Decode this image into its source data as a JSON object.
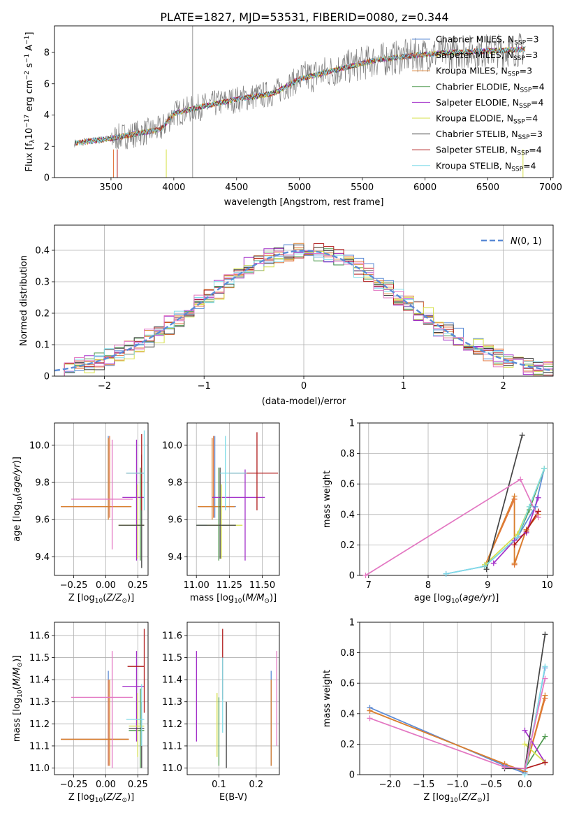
{
  "figure_title": "PLATE=1827, MJD=53531, FIBERID=0080, z=0.344",
  "models": [
    {
      "name": "Chabrier MILES",
      "nssp": "3",
      "color": "#5b8bd6"
    },
    {
      "name": "Salpeter MILES",
      "nssp": "3",
      "color": "#e3743c"
    },
    {
      "name": "Kroupa MILES",
      "nssp": "3",
      "color": "#d97f2e"
    },
    {
      "name": "Chabrier ELODIE",
      "nssp": "4",
      "color": "#4f9a4f"
    },
    {
      "name": "Salpeter ELODIE",
      "nssp": "4",
      "color": "#a330c9"
    },
    {
      "name": "Kroupa ELODIE",
      "nssp": "4",
      "color": "#d6e04a"
    },
    {
      "name": "Chabrier STELIB",
      "nssp": "3",
      "color": "#444444"
    },
    {
      "name": "Salpeter STELIB",
      "nssp": "4",
      "color": "#b01c1c"
    },
    {
      "name": "Kroupa STELIB",
      "nssp": "4",
      "color": "#80dce8"
    }
  ],
  "chart_data": [
    {
      "id": "spectrum",
      "type": "line",
      "xlabel": "wavelength [Angstrom, rest frame]",
      "ylabel": "Flux [f_λ10^-17 erg cm^-2 s^-1 A^-1]",
      "xlim": [
        3050,
        7020
      ],
      "ylim": [
        0,
        9.7
      ],
      "xticks": [
        3500,
        4000,
        4500,
        5000,
        5500,
        6000,
        6500,
        7000
      ],
      "yticks": [
        0,
        2,
        4,
        6,
        8
      ],
      "data_color": "#808080",
      "continuum": {
        "x": [
          3210,
          3500,
          3700,
          3900,
          4000,
          4200,
          4500,
          4800,
          5000,
          5300,
          5600,
          5900,
          6200,
          6500,
          6800
        ],
        "y": [
          2.2,
          2.5,
          2.8,
          3.1,
          4.1,
          4.5,
          5.0,
          5.4,
          6.3,
          6.9,
          7.5,
          7.8,
          8.0,
          8.1,
          8.2
        ]
      },
      "grid": false,
      "legend": "upper right"
    },
    {
      "id": "residuals",
      "type": "histogram",
      "xlabel": "(data-model)/error",
      "ylabel": "Normed distribution",
      "xlim": [
        -2.5,
        2.5
      ],
      "ylim": [
        0,
        0.48
      ],
      "xticks": [
        -2,
        -1,
        0,
        1,
        2
      ],
      "yticks": [
        0.0,
        0.1,
        0.2,
        0.3,
        0.4
      ],
      "bin_width": 0.1,
      "reference": {
        "label": "N(0,1)",
        "color": "#5b8bd6",
        "style": "dashed"
      },
      "grid": true,
      "legend": "upper right"
    },
    {
      "id": "age_vs_Z",
      "type": "errorbar",
      "xlabel": "Z [log10(Z/Z☉)]",
      "ylabel": "age  [log10(age/yr)]",
      "xlim": [
        -0.4,
        0.33
      ],
      "ylim": [
        9.3,
        10.12
      ],
      "xticks": [
        -0.25,
        0.0,
        0.25
      ],
      "xticklabels": [
        "−0.25",
        "0.00",
        "0.25"
      ],
      "yticks": [
        9.4,
        9.6,
        9.8,
        10.0
      ],
      "yticklabels": [
        "9.4",
        "9.6",
        "9.8",
        "10.0"
      ],
      "points": [
        {
          "m": 0,
          "x": 0.02,
          "y": 9.67,
          "x0": -0.35,
          "x1": 0.2,
          "y0": 9.61,
          "y1": 10.05
        },
        {
          "m": 1,
          "x": 0.03,
          "y": 9.67,
          "x0": -0.35,
          "x1": 0.2,
          "y0": 9.61,
          "y1": 10.05
        },
        {
          "m": 2,
          "x": 0.02,
          "y": 9.67,
          "x0": -0.35,
          "x1": 0.2,
          "y0": 9.6,
          "y1": 10.04
        },
        {
          "m": 3,
          "x": 0.27,
          "y": 9.57,
          "x0": 0.1,
          "x1": 0.3,
          "y0": 9.38,
          "y1": 9.88
        },
        {
          "m": 4,
          "x": 0.24,
          "y": 9.72,
          "x0": 0.13,
          "x1": 0.3,
          "y0": 9.38,
          "y1": 10.03
        },
        {
          "m": 5,
          "x": 0.25,
          "y": 9.57,
          "x0": 0.1,
          "x1": 0.3,
          "y0": 9.39,
          "y1": 9.79
        },
        {
          "m": 6,
          "x": 0.28,
          "y": 9.57,
          "x0": 0.1,
          "x1": 0.3,
          "y0": 9.34,
          "y1": 9.95
        },
        {
          "m": 7,
          "x": 0.28,
          "y": 9.85,
          "x0": 0.16,
          "x1": 0.3,
          "y0": 9.65,
          "y1": 10.06
        },
        {
          "m": 8,
          "x": 0.3,
          "y": 9.85,
          "x0": 0.16,
          "x1": 0.3,
          "y0": 9.65,
          "y1": 10.08
        }
      ],
      "pink": {
        "x": 0.05,
        "y": 9.71,
        "x0": -0.27,
        "x1": 0.21,
        "y0": 9.44,
        "y1": 10.03,
        "color": "#e377c2"
      },
      "grid": true
    },
    {
      "id": "age_vs_mass",
      "type": "errorbar",
      "xlabel": "mass [log10(M/M☉)]",
      "ylabel": "",
      "xlim": [
        10.93,
        11.63
      ],
      "ylim": [
        9.3,
        10.12
      ],
      "xticks": [
        11.0,
        11.25,
        11.5
      ],
      "xticklabels": [
        "11.00",
        "11.25",
        "11.50"
      ],
      "yticks": [
        9.4,
        9.6,
        9.8,
        10.0
      ],
      "yticklabels": [
        "9.4",
        "9.6",
        "9.8",
        "10.0"
      ],
      "points": [
        {
          "m": 0,
          "x": 11.14,
          "y": 9.67,
          "x0": 11.02,
          "x1": 11.3,
          "y0": 9.61,
          "y1": 10.05
        },
        {
          "m": 1,
          "x": 11.13,
          "y": 9.67,
          "x0": 11.01,
          "x1": 11.29,
          "y0": 9.61,
          "y1": 10.05
        },
        {
          "m": 2,
          "x": 11.12,
          "y": 9.67,
          "x0": 11.01,
          "x1": 11.29,
          "y0": 9.6,
          "y1": 10.04
        },
        {
          "m": 3,
          "x": 11.17,
          "y": 9.57,
          "x0": 11.0,
          "x1": 11.3,
          "y0": 9.38,
          "y1": 9.88
        },
        {
          "m": 4,
          "x": 11.37,
          "y": 9.72,
          "x0": 11.12,
          "x1": 11.52,
          "y0": 9.38,
          "y1": 9.87
        },
        {
          "m": 5,
          "x": 11.19,
          "y": 9.57,
          "x0": 11.08,
          "x1": 11.35,
          "y0": 9.39,
          "y1": 9.79
        },
        {
          "m": 6,
          "x": 11.18,
          "y": 9.57,
          "x0": 11.0,
          "x1": 11.3,
          "y0": 9.39,
          "y1": 9.88
        },
        {
          "m": 7,
          "x": 11.46,
          "y": 9.85,
          "x0": 11.25,
          "x1": 11.62,
          "y0": 9.65,
          "y1": 10.07
        },
        {
          "m": 8,
          "x": 11.22,
          "y": 9.85,
          "x0": 11.18,
          "x1": 11.38,
          "y0": 9.65,
          "y1": 10.05
        }
      ],
      "grid": true
    },
    {
      "id": "weight_vs_age",
      "type": "line",
      "xlabel": "age  [log10(age/yr)]",
      "ylabel": "mass weight",
      "xlim": [
        6.85,
        10.1
      ],
      "ylim": [
        0,
        1.0
      ],
      "xticks": [
        7,
        8,
        9,
        10
      ],
      "yticks": [
        0.0,
        0.2,
        0.4,
        0.6,
        0.8,
        1.0
      ],
      "series": [
        {
          "m": 0,
          "x": [
            8.3,
            8.95,
            9.5,
            9.8,
            9.95
          ],
          "y": [
            0.01,
            0.06,
            0.25,
            0.45,
            0.7
          ]
        },
        {
          "m": 1,
          "x": [
            8.95,
            9.45,
            9.45,
            9.65,
            9.85
          ],
          "y": [
            0.06,
            0.5,
            0.07,
            0.3,
            0.42
          ]
        },
        {
          "m": 2,
          "x": [
            8.95,
            9.45,
            9.45,
            9.65,
            9.85
          ],
          "y": [
            0.06,
            0.52,
            0.08,
            0.3,
            0.4
          ]
        },
        {
          "m": 3,
          "x": [
            8.95,
            9.5,
            9.7,
            9.95
          ],
          "y": [
            0.06,
            0.25,
            0.43,
            0.7
          ]
        },
        {
          "m": 4,
          "x": [
            9.1,
            9.45,
            9.65,
            9.85
          ],
          "y": [
            0.08,
            0.23,
            0.28,
            0.51
          ]
        },
        {
          "m": 5,
          "x": [
            8.95,
            9.5,
            9.7,
            9.95
          ],
          "y": [
            0.07,
            0.27,
            0.45,
            0.7
          ]
        },
        {
          "m": 6,
          "x": [
            8.98,
            9.58
          ],
          "y": [
            0.04,
            0.92
          ]
        },
        {
          "m": 7,
          "x": [
            9.45,
            9.65,
            9.85
          ],
          "y": [
            0.2,
            0.29,
            0.42
          ]
        },
        {
          "m": 8,
          "x": [
            8.3,
            8.95,
            9.5,
            9.7,
            9.95
          ],
          "y": [
            0.01,
            0.06,
            0.25,
            0.45,
            0.7
          ]
        },
        {
          "m": -1,
          "x": [
            6.95,
            9.55,
            9.85
          ],
          "y": [
            0.0,
            0.63,
            0.38
          ]
        }
      ],
      "grid": true
    },
    {
      "id": "mass_vs_Z",
      "type": "errorbar",
      "xlabel": "Z [log10(Z/Z☉)]",
      "ylabel": "mass [log10(M/M☉)]",
      "xlim": [
        -0.4,
        0.33
      ],
      "ylim": [
        10.97,
        11.66
      ],
      "xticks": [
        -0.25,
        0.0,
        0.25
      ],
      "xticklabels": [
        "−0.25",
        "0.00",
        "0.25"
      ],
      "yticks": [
        11.0,
        11.1,
        11.2,
        11.3,
        11.4,
        11.5,
        11.6
      ],
      "yticklabels": [
        "11.0",
        "11.1",
        "11.2",
        "11.3",
        "11.4",
        "11.5",
        "11.6"
      ],
      "points": [
        {
          "m": 0,
          "x": 0.02,
          "y": 11.13,
          "x0": -0.35,
          "x1": 0.18,
          "y0": 11.01,
          "y1": 11.44
        },
        {
          "m": 1,
          "x": 0.02,
          "y": 11.13,
          "x0": -0.35,
          "x1": 0.18,
          "y0": 11.01,
          "y1": 11.4
        },
        {
          "m": 2,
          "x": 0.03,
          "y": 11.13,
          "x0": -0.35,
          "x1": 0.18,
          "y0": 11.01,
          "y1": 11.4
        },
        {
          "m": 3,
          "x": 0.27,
          "y": 11.17,
          "x0": 0.18,
          "x1": 0.3,
          "y0": 11.0,
          "y1": 11.36
        },
        {
          "m": 4,
          "x": 0.24,
          "y": 11.37,
          "x0": 0.13,
          "x1": 0.3,
          "y0": 11.12,
          "y1": 11.53
        },
        {
          "m": 5,
          "x": 0.25,
          "y": 11.19,
          "x0": 0.18,
          "x1": 0.3,
          "y0": 11.05,
          "y1": 11.34
        },
        {
          "m": 6,
          "x": 0.28,
          "y": 11.18,
          "x0": 0.18,
          "x1": 0.3,
          "y0": 11.0,
          "y1": 11.3
        },
        {
          "m": 7,
          "x": 0.3,
          "y": 11.46,
          "x0": 0.17,
          "x1": 0.3,
          "y0": 11.25,
          "y1": 11.63
        },
        {
          "m": 8,
          "x": 0.28,
          "y": 11.22,
          "x0": 0.16,
          "x1": 0.3,
          "y0": 11.1,
          "y1": 11.38
        }
      ],
      "pink": {
        "x": 0.05,
        "y": 11.32,
        "x0": -0.27,
        "x1": 0.21,
        "y0": 11.0,
        "y1": 11.53,
        "color": "#e377c2"
      },
      "grid": true
    },
    {
      "id": "mass_vs_ebv",
      "type": "errorbar",
      "xlabel": "E(B-V)",
      "ylabel": "",
      "xlim": [
        0.015,
        0.262
      ],
      "ylim": [
        10.97,
        11.66
      ],
      "xticks": [
        0.1,
        0.2
      ],
      "xticklabels": [
        "0.1",
        "0.2"
      ],
      "yticks": [
        11.0,
        11.1,
        11.2,
        11.3,
        11.4,
        11.5,
        11.6
      ],
      "yticklabels": [
        "11.0",
        "11.1",
        "11.2",
        "11.3",
        "11.4",
        "11.5",
        "11.6"
      ],
      "points": [
        {
          "m": 0,
          "x": 0.24,
          "y": 11.14,
          "y0": 11.01,
          "y1": 11.44
        },
        {
          "m": 2,
          "x": 0.24,
          "y": 11.13,
          "y0": 11.01,
          "y1": 11.4
        },
        {
          "m": 3,
          "x": 0.1,
          "y": 11.17,
          "y0": 11.01,
          "y1": 11.32
        },
        {
          "m": 4,
          "x": 0.04,
          "y": 11.37,
          "y0": 11.12,
          "y1": 11.53
        },
        {
          "m": 5,
          "x": 0.095,
          "y": 11.19,
          "y0": 11.05,
          "y1": 11.34
        },
        {
          "m": 6,
          "x": 0.12,
          "y": 11.18,
          "y0": 11.0,
          "y1": 11.3
        },
        {
          "m": 7,
          "x": 0.11,
          "y": 11.46,
          "y0": 11.31,
          "y1": 11.63
        },
        {
          "m": 8,
          "x": 0.11,
          "y": 11.22,
          "y0": 11.16,
          "y1": 11.5
        }
      ],
      "pink": {
        "x": 0.255,
        "y": 11.32,
        "y0": 11.1,
        "y1": 11.53,
        "color": "#e377c2"
      },
      "grid": true
    },
    {
      "id": "weight_vs_Z",
      "type": "line",
      "xlabel": "Z [log10(Z/Z☉)]",
      "ylabel": "mass weight",
      "xlim": [
        -2.45,
        0.42
      ],
      "ylim": [
        0,
        1.0
      ],
      "xticks": [
        -2.0,
        -1.5,
        -1.0,
        -0.5,
        0.0
      ],
      "xticklabels": [
        "−2.0",
        "−1.5",
        "−1.0",
        "−0.5",
        "0.0"
      ],
      "yticks": [
        0.0,
        0.2,
        0.4,
        0.6,
        0.8,
        1.0
      ],
      "series": [
        {
          "m": 0,
          "x": [
            -2.3,
            -0.3,
            0.0,
            0.3
          ],
          "y": [
            0.44,
            0.06,
            0.01,
            0.7
          ]
        },
        {
          "m": 1,
          "x": [
            -2.3,
            -0.3,
            0.0,
            0.3
          ],
          "y": [
            0.42,
            0.07,
            0.02,
            0.5
          ]
        },
        {
          "m": 2,
          "x": [
            -2.3,
            -0.3,
            0.0,
            0.3
          ],
          "y": [
            0.42,
            0.07,
            0.02,
            0.52
          ]
        },
        {
          "m": 3,
          "x": [
            0.0,
            0.3
          ],
          "y": [
            0.04,
            0.25
          ]
        },
        {
          "m": 4,
          "x": [
            0.0,
            0.3
          ],
          "y": [
            0.29,
            0.08
          ]
        },
        {
          "m": 5,
          "x": [
            0.0,
            0.3
          ],
          "y": [
            0.2,
            0.08
          ]
        },
        {
          "m": 6,
          "x": [
            -0.3,
            0.0,
            0.3
          ],
          "y": [
            0.04,
            0.04,
            0.92
          ]
        },
        {
          "m": 7,
          "x": [
            0.0,
            0.3
          ],
          "y": [
            0.04,
            0.08
          ]
        },
        {
          "m": 8,
          "x": [
            0.0,
            0.3
          ],
          "y": [
            0.0,
            0.71
          ]
        },
        {
          "m": -1,
          "x": [
            -2.3,
            -0.3,
            0.0,
            0.3
          ],
          "y": [
            0.37,
            0.05,
            0.04,
            0.63
          ]
        }
      ],
      "grid": true
    }
  ]
}
